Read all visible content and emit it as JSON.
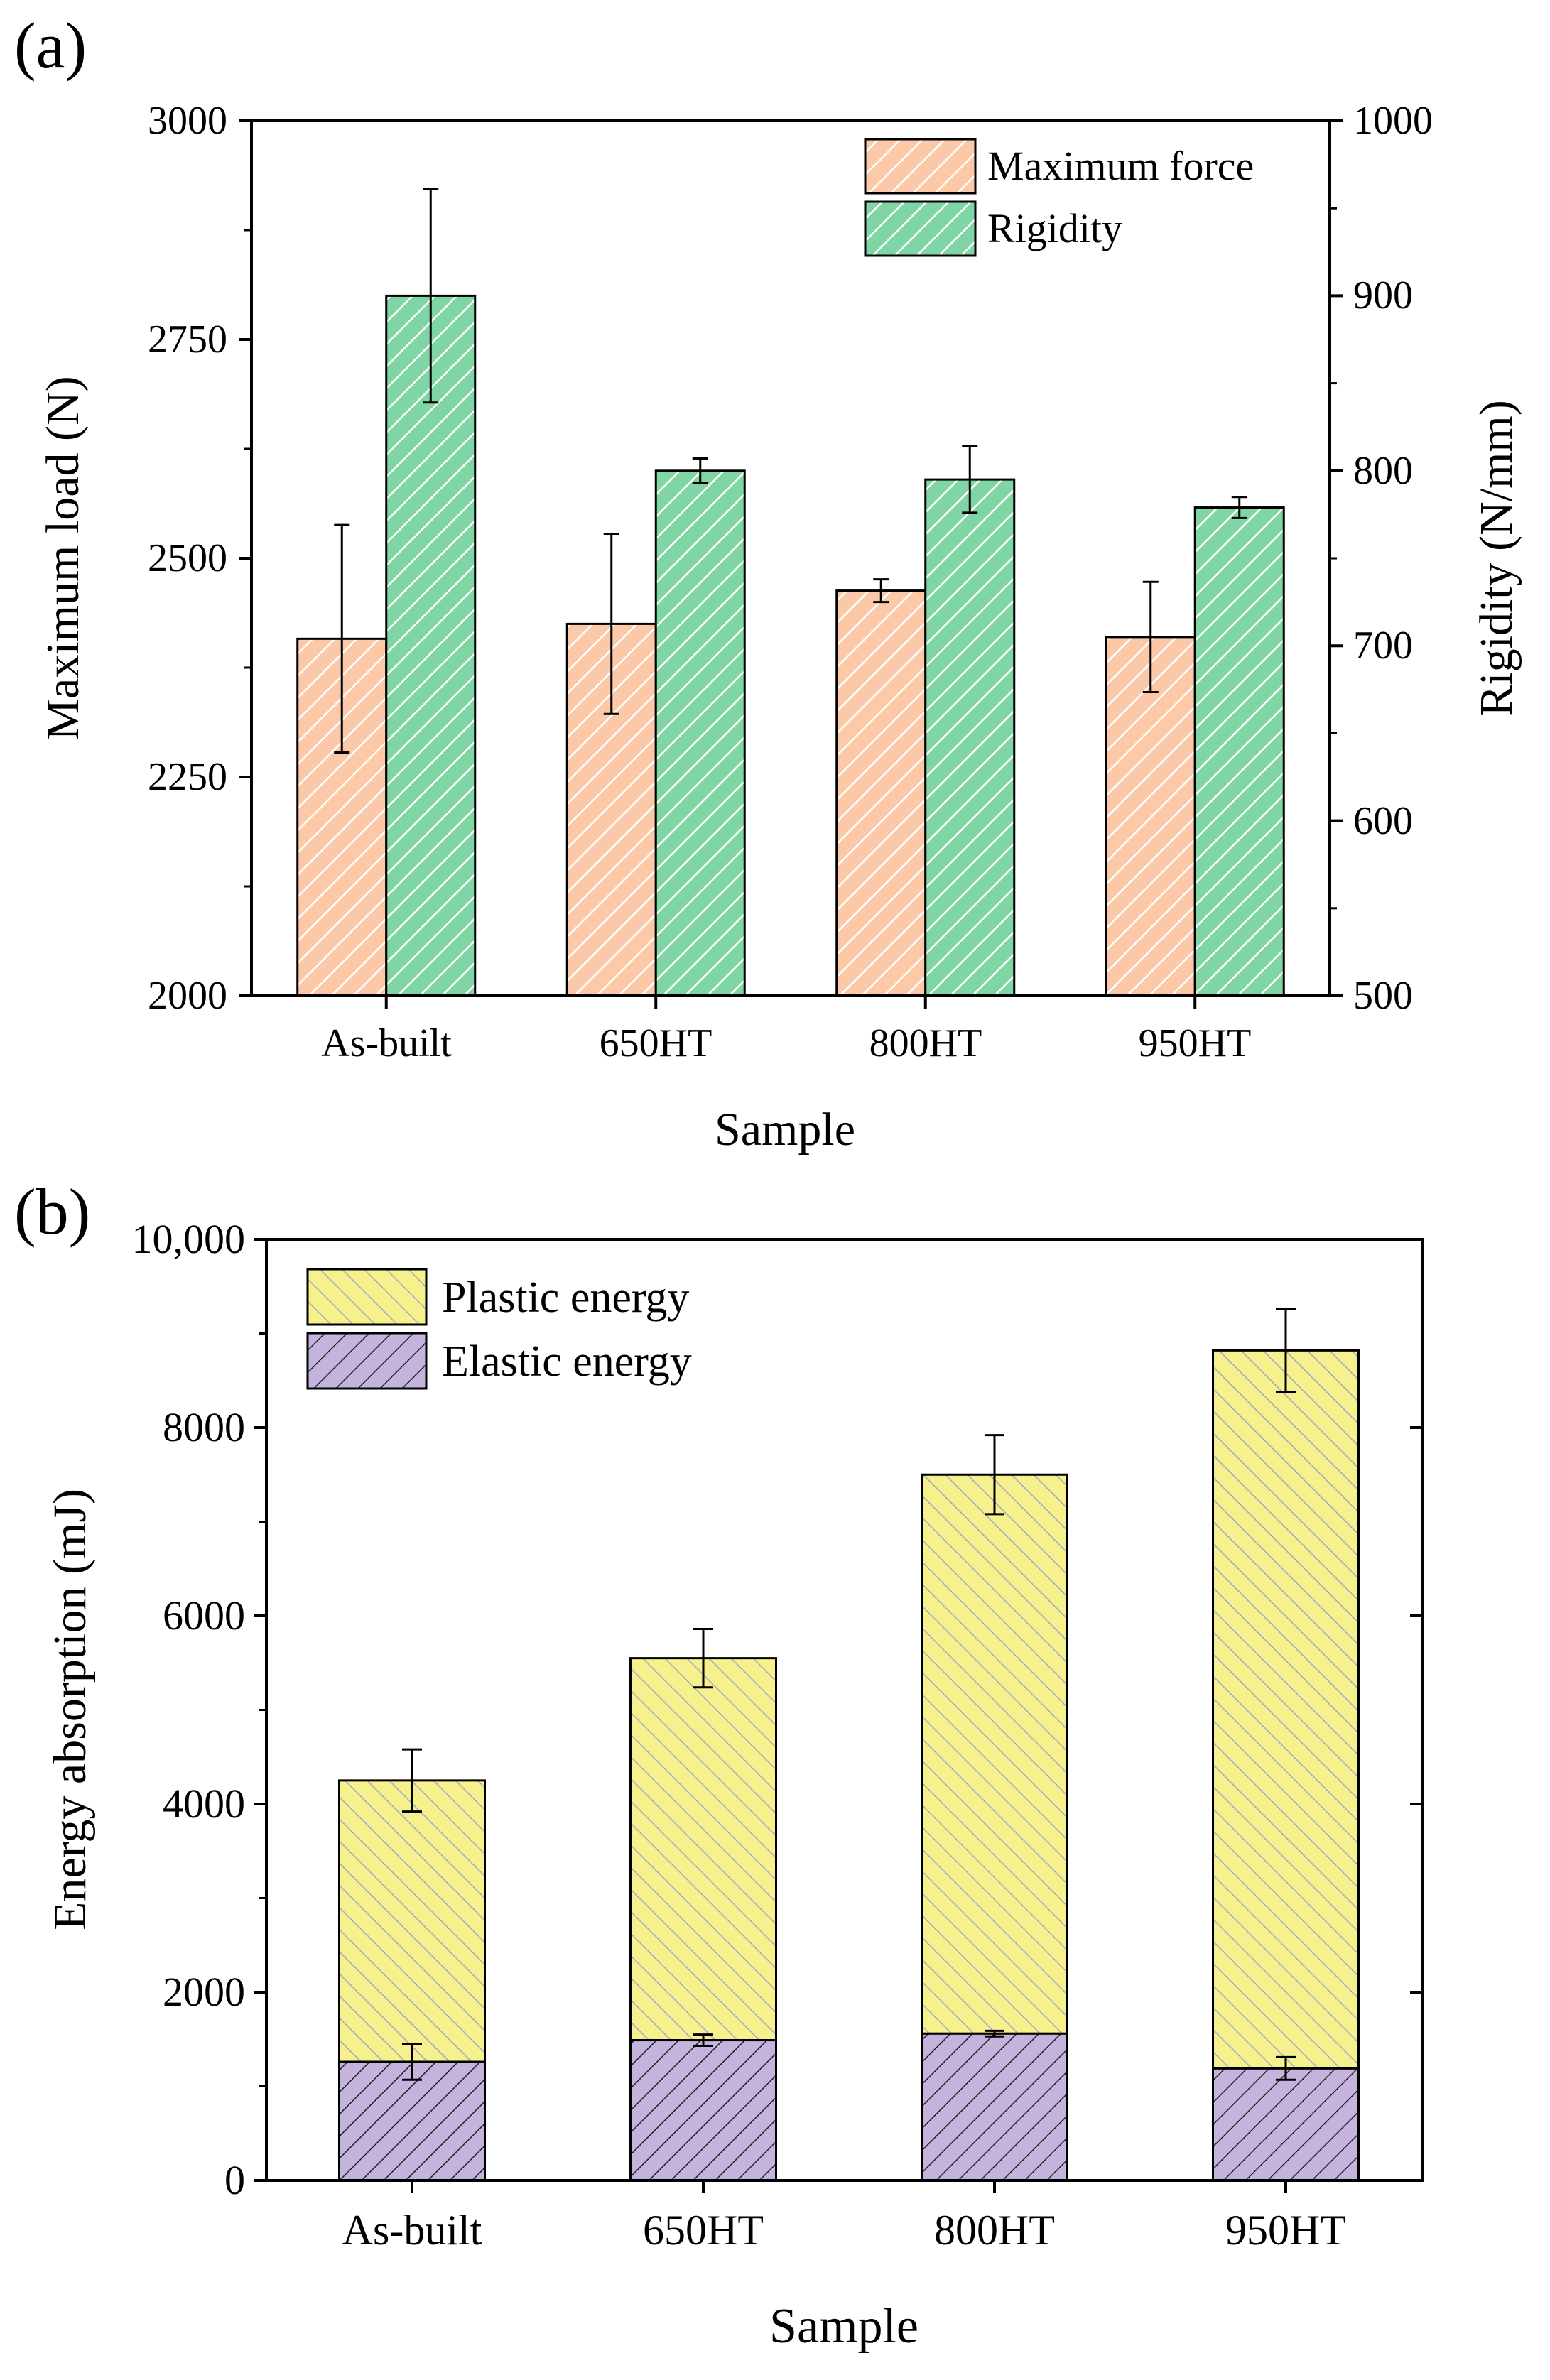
{
  "colors": {
    "orange_fill": "#fbc9a8",
    "orange_stripe": "#ffffff",
    "green_fill": "#7fd6a4",
    "green_stripe": "#ffffff",
    "yellow_fill": "#f6f18c",
    "yellow_stripe": "#9aa8c6",
    "purple_fill": "#c4b3dc",
    "purple_stripe": "#1f1f1f"
  },
  "chart_data": [
    {
      "panel_label": "(a)",
      "type": "bar",
      "title": "",
      "xlabel": "Sample",
      "ylabel": "Maximum load (N)",
      "y2label": "Rigidity (N/mm)",
      "categories": [
        "As-built",
        "650HT",
        "800HT",
        "950HT"
      ],
      "ylim": [
        2000,
        3000
      ],
      "yticks": [
        "2000",
        "2250",
        "2500",
        "2750",
        "3000"
      ],
      "y2lim": [
        500,
        1000
      ],
      "y2ticks": [
        "500",
        "600",
        "700",
        "800",
        "900",
        "1000"
      ],
      "legend_position": "top-right",
      "series": [
        {
          "name": "Maximum force",
          "axis": "left",
          "values": [
            2408,
            2425,
            2463,
            2410
          ],
          "errors": [
            130,
            103,
            13,
            63
          ]
        },
        {
          "name": "Rigidity",
          "axis": "right",
          "values": [
            900,
            800,
            795,
            779
          ],
          "errors": [
            61,
            7,
            19,
            6
          ]
        }
      ]
    },
    {
      "panel_label": "(b)",
      "type": "bar",
      "stacked": true,
      "title": "",
      "xlabel": "Sample",
      "ylabel": "Energy absorption (mJ)",
      "categories": [
        "As-built",
        "650HT",
        "800HT",
        "950HT"
      ],
      "ylim": [
        0,
        10000
      ],
      "yticks": [
        "0",
        "2000",
        "4000",
        "6000",
        "8000",
        "10,000"
      ],
      "legend_position": "top-left",
      "series": [
        {
          "name": "Plastic energy",
          "values": [
            2990,
            4060,
            5940,
            7630
          ],
          "total_values": [
            4250,
            5550,
            7500,
            8820
          ],
          "total_errors": [
            330,
            310,
            420,
            440
          ]
        },
        {
          "name": "Elastic energy",
          "values": [
            1260,
            1490,
            1560,
            1190
          ],
          "errors": [
            190,
            60,
            30,
            120
          ]
        }
      ]
    }
  ]
}
